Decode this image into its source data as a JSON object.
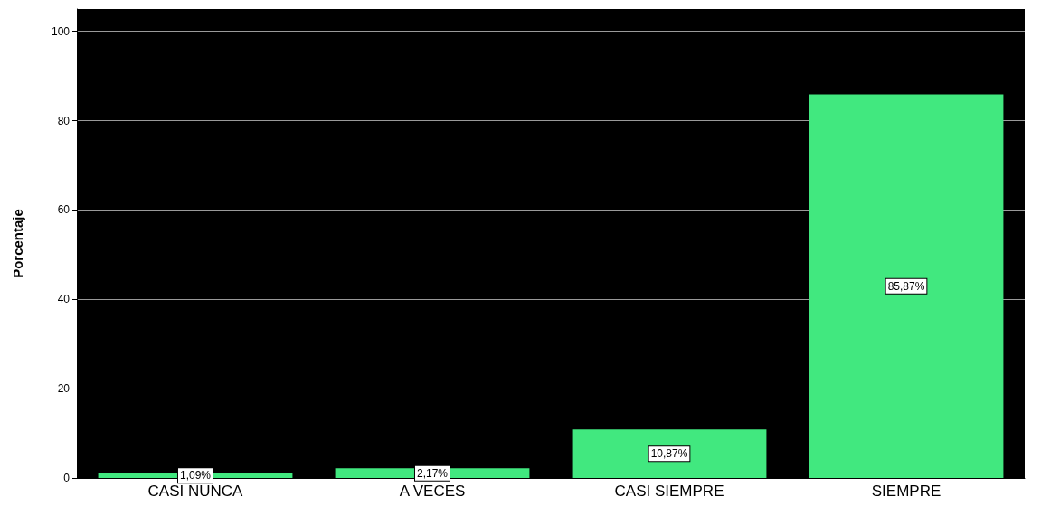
{
  "chart_data": {
    "type": "bar",
    "ylabel": "Porcentaje",
    "categories": [
      "CASI NUNCA",
      "A VECES",
      "CASI SIEMPRE",
      "SIEMPRE"
    ],
    "values": [
      1.09,
      2.17,
      10.87,
      85.87
    ],
    "value_labels": [
      "1,09%",
      "2,17%",
      "10,87%",
      "85,87%"
    ],
    "color": "#41e87f",
    "ylim": [
      0,
      105
    ],
    "yticks": [
      0,
      20,
      40,
      60,
      80,
      100
    ],
    "grid": "y"
  }
}
